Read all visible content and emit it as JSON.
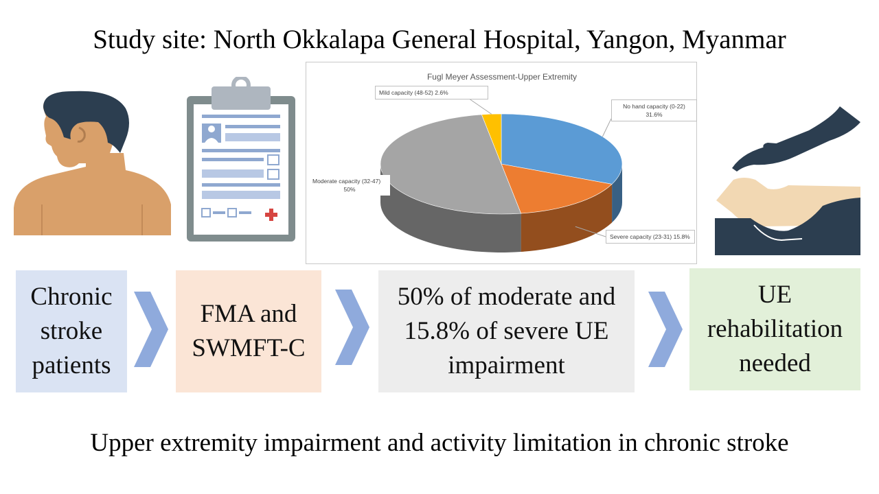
{
  "header": {
    "title": "Study site: North Okkalapa General Hospital, Yangon, Myanmar"
  },
  "footer": {
    "title": "Upper extremity impairment and activity limitation in chronic stroke"
  },
  "icons": [
    "patient-profile-icon",
    "clipboard-form-icon",
    "hands-therapy-icon",
    "chevron-right-icon"
  ],
  "flow": {
    "steps": [
      {
        "label": "Chronic stroke patients",
        "color": "#dae3f3"
      },
      {
        "label": "FMA and SWMFT-C",
        "color": "#fbe5d6"
      },
      {
        "label": "50% of moderate and 15.8% of severe UE impairment",
        "color": "#ededed"
      },
      {
        "label": "UE rehabilitation needed",
        "color": "#e2f0d9"
      }
    ],
    "arrow_color": "#8faadc"
  },
  "chart_data": {
    "type": "pie",
    "title": "Fugl Meyer Assessment-Upper Extremity",
    "slices": [
      {
        "label": "No hand capacity (0-22)",
        "value": 31.6,
        "display": "31.6%",
        "color": "#5b9bd5"
      },
      {
        "label": "Severe capacity (23-31)",
        "value": 15.8,
        "display": "15.8%",
        "color": "#ed7d31"
      },
      {
        "label": "Moderate capacity (32-47)",
        "value": 50,
        "display": "50%",
        "color": "#a5a5a5"
      },
      {
        "label": "Mild capacity (48-52)",
        "value": 2.6,
        "display": "2.6%",
        "color": "#ffc000"
      }
    ],
    "legend": "none",
    "style": "3d"
  }
}
